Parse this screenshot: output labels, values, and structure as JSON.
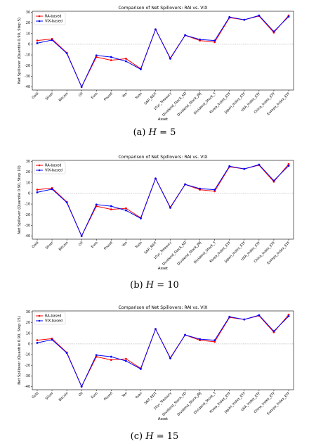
{
  "chart_data": [
    {
      "type": "line",
      "title": "Comparison of Net Spillovers: RAI vs. VIX",
      "xlabel": "Asset",
      "ylabel": "Net Spillover (Quantile 0.90, Step 5)",
      "ylim": [
        -43,
        31
      ],
      "yticks": [
        30,
        20,
        10,
        0,
        -10,
        -20,
        -30,
        -40
      ],
      "zero_line": true,
      "legend": "top-left",
      "categories": [
        "Gold",
        "Silver",
        "Bitcoin",
        "Oil",
        "Euro",
        "Pound",
        "Yen",
        "Yuan",
        "S&P_REIT",
        "10yr_Treasury",
        "Dividend_Stock_KO",
        "Dividend_Stock_JNJ",
        "Dividend_Stock_T",
        "Korea_Index_ETF",
        "Japan_Index_ETF",
        "USA_Index_ETF",
        "China_Index_ETF",
        "Europe_Index_ETF"
      ],
      "series": [
        {
          "name": "RA-based",
          "color": "#ff0000",
          "values": [
            3.5,
            5,
            -8,
            -40,
            -12,
            -15,
            -13.5,
            -23,
            14,
            -13,
            8.5,
            3.5,
            2,
            25,
            23,
            26.5,
            11,
            27
          ]
        },
        {
          "name": "VIX-based",
          "color": "#0000ff",
          "values": [
            1,
            4,
            -8.5,
            -40,
            -10.5,
            -12,
            -16,
            -23.5,
            14,
            -13.5,
            8.5,
            4.5,
            3.5,
            25.5,
            23,
            27,
            12,
            26
          ]
        }
      ],
      "caption_label": "(a)",
      "caption_var": "H",
      "caption_text": "= 5"
    },
    {
      "type": "line",
      "title": "Comparison of Net Spillovers: RAI vs. VIX",
      "xlabel": "Asset",
      "ylabel": "Net Spillover (Quantile 0.90, Step 10)",
      "ylim": [
        -43,
        31
      ],
      "yticks": [
        30,
        20,
        10,
        0,
        -10,
        -20,
        -30,
        -40
      ],
      "zero_line": true,
      "legend": "top-left",
      "categories": [
        "Gold",
        "Silver",
        "Bitcoin",
        "Oil",
        "Euro",
        "Pound",
        "Yen",
        "Yuan",
        "S&P_REIT",
        "10yr_Treasury",
        "Dividend_Stock_KO",
        "Dividend_Stock_JNJ",
        "Dividend_Stock_T",
        "Korea_Index_ETF",
        "Japan_Index_ETF",
        "USA_Index_ETF",
        "China_Index_ETF",
        "Europe_Index_ETF"
      ],
      "series": [
        {
          "name": "RA-based",
          "color": "#ff0000",
          "values": [
            3.5,
            5,
            -8,
            -40,
            -12,
            -15,
            -14,
            -23,
            14,
            -13,
            8.5,
            3.5,
            2,
            25,
            23,
            26.5,
            11,
            27.5
          ]
        },
        {
          "name": "VIX-based",
          "color": "#0000ff",
          "values": [
            1,
            4,
            -8.5,
            -40,
            -10.5,
            -12,
            -16,
            -23.5,
            14,
            -13.5,
            8.5,
            4.5,
            3.5,
            25.5,
            23,
            27,
            12,
            26
          ]
        }
      ],
      "caption_label": "(b)",
      "caption_var": "H",
      "caption_text": "= 10"
    },
    {
      "type": "line",
      "title": "Comparison of Net Spillovers: RAI vs. VIX",
      "xlabel": "Asset",
      "ylabel": "Net Spillover (Quantile 0.90, Step 15)",
      "ylim": [
        -43,
        31
      ],
      "yticks": [
        30,
        20,
        10,
        0,
        -10,
        -20,
        -30,
        -40
      ],
      "zero_line": true,
      "legend": "top-left",
      "categories": [
        "Gold",
        "Silver",
        "Bitcoin",
        "Oil",
        "Euro",
        "Pound",
        "Yen",
        "Yuan",
        "S&P_REIT",
        "10yr_Treasury",
        "Dividend_Stock_KO",
        "Dividend_Stock_JNJ",
        "Dividend_Stock_T",
        "Korea_Index_ETF",
        "Japan_Index_ETF",
        "USA_Index_ETF",
        "China_Index_ETF",
        "Europe_Index_ETF"
      ],
      "series": [
        {
          "name": "RA-based",
          "color": "#ff0000",
          "values": [
            3.5,
            5,
            -8,
            -40,
            -12,
            -15,
            -14,
            -23,
            14,
            -13,
            8.5,
            3.5,
            2,
            25,
            23,
            26.5,
            11,
            27.5
          ]
        },
        {
          "name": "VIX-based",
          "color": "#0000ff",
          "values": [
            1,
            4,
            -8.5,
            -40,
            -10.5,
            -12,
            -16,
            -23.5,
            14,
            -13.5,
            8.5,
            4.5,
            3.5,
            25.5,
            23,
            27,
            12,
            26
          ]
        }
      ],
      "caption_label": "(c)",
      "caption_var": "H",
      "caption_text": "= 15"
    }
  ]
}
